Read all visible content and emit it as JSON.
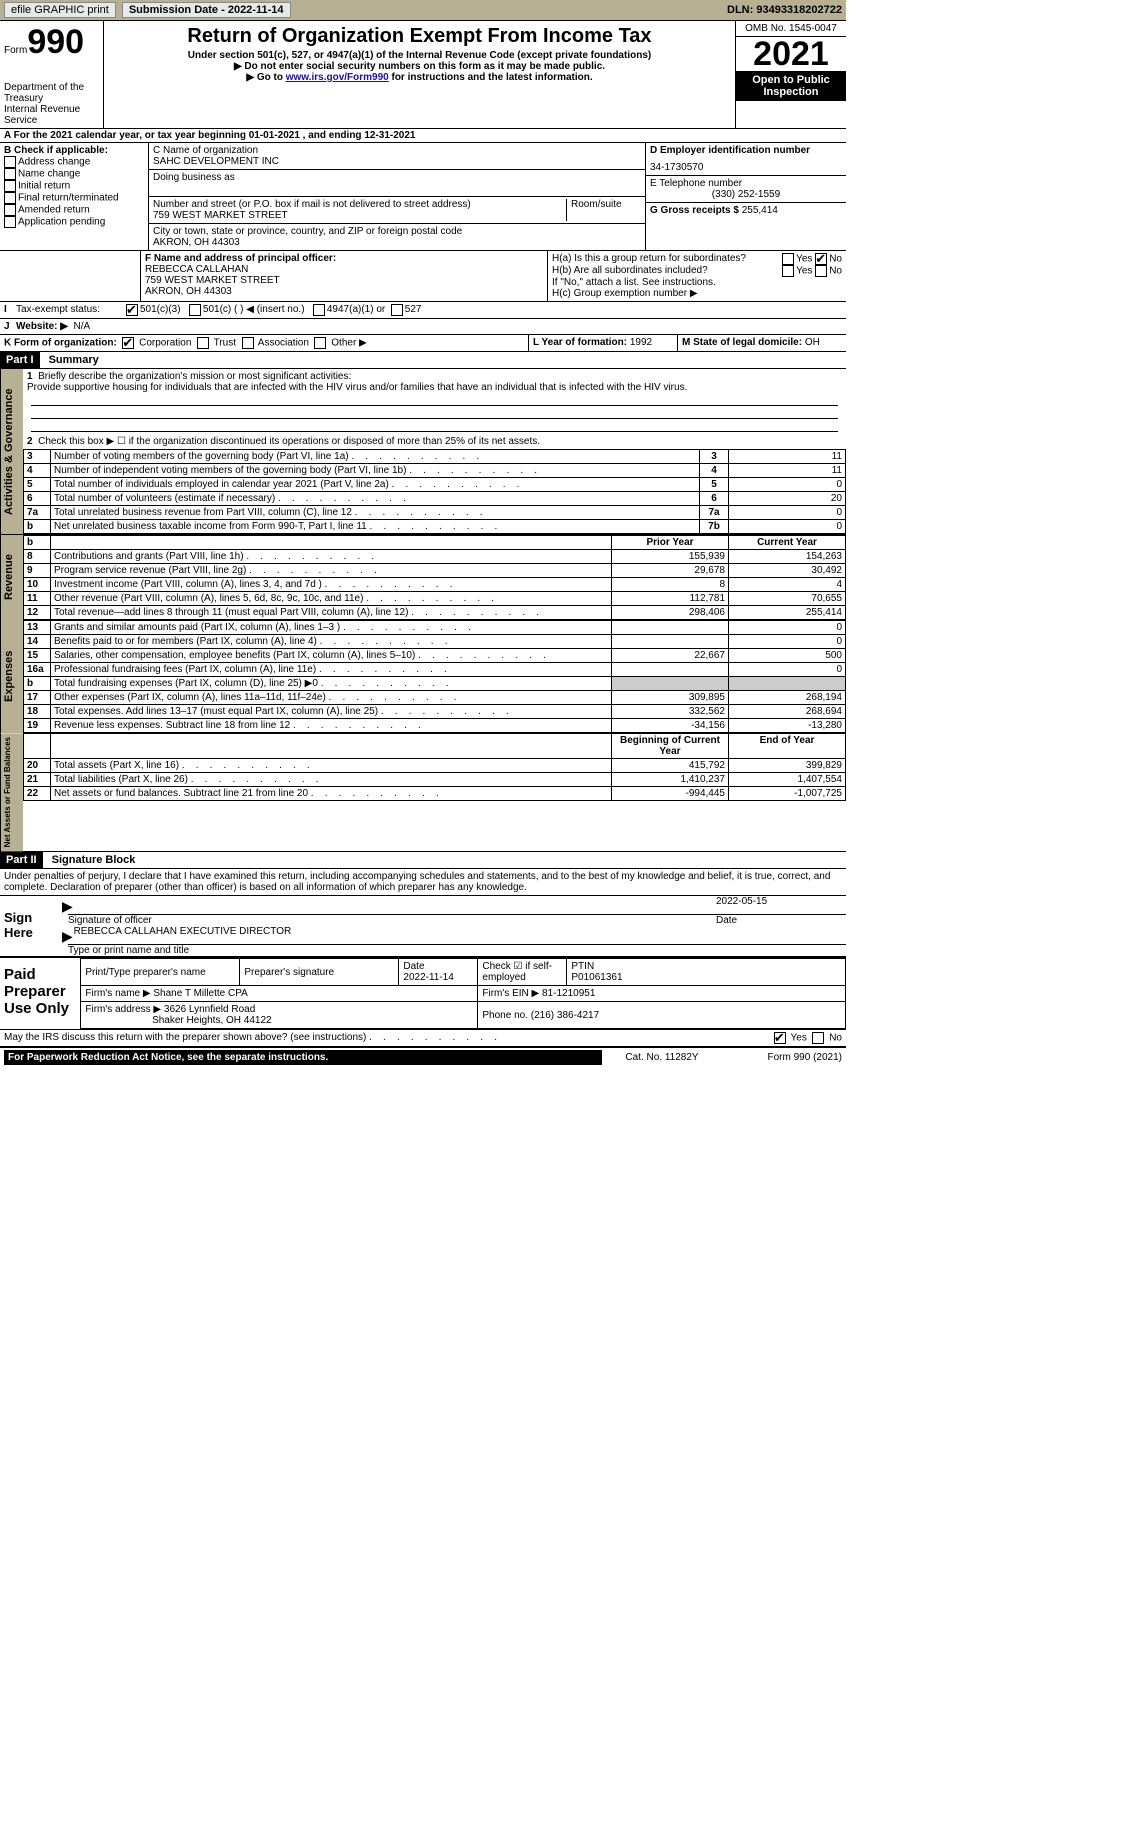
{
  "topbar": {
    "efile": "efile GRAPHIC print",
    "submission_label": "Submission Date - 2022-11-14",
    "dln": "DLN: 93493318202722"
  },
  "header": {
    "form_word": "Form",
    "form_num": "990",
    "dept": "Department of the Treasury",
    "irs": "Internal Revenue Service",
    "title": "Return of Organization Exempt From Income Tax",
    "sub1": "Under section 501(c), 527, or 4947(a)(1) of the Internal Revenue Code (except private foundations)",
    "sub2": "▶ Do not enter social security numbers on this form as it may be made public.",
    "sub3_pre": "▶ Go to ",
    "sub3_link": "www.irs.gov/Form990",
    "sub3_post": " for instructions and the latest information.",
    "omb": "OMB No. 1545-0047",
    "year": "2021",
    "open": "Open to Public Inspection"
  },
  "lineA": "A For the 2021 calendar year, or tax year beginning 01-01-2021   , and ending 12-31-2021",
  "B": {
    "label": "B Check if applicable:",
    "items": [
      "Address change",
      "Name change",
      "Initial return",
      "Final return/terminated",
      "Amended return",
      "Application pending"
    ]
  },
  "C": {
    "name_lbl": "C Name of organization",
    "name": "SAHC DEVELOPMENT INC",
    "dba_lbl": "Doing business as",
    "street_lbl": "Number and street (or P.O. box if mail is not delivered to street address)",
    "room_lbl": "Room/suite",
    "street": "759 WEST MARKET STREET",
    "city_lbl": "City or town, state or province, country, and ZIP or foreign postal code",
    "city": "AKRON, OH  44303"
  },
  "D": {
    "lbl": "D Employer identification number",
    "val": "34-1730570"
  },
  "E": {
    "lbl": "E Telephone number",
    "val": "(330) 252-1559"
  },
  "G": {
    "lbl": "G Gross receipts $",
    "val": "255,414"
  },
  "F": {
    "lbl": "F  Name and address of principal officer:",
    "name": "REBECCA CALLAHAN",
    "street": "759 WEST MARKET STREET",
    "city": "AKRON, OH  44303"
  },
  "H": {
    "a": "H(a)  Is this a group return for subordinates?",
    "b": "H(b)  Are all subordinates included?",
    "b_note": "If \"No,\" attach a list. See instructions.",
    "c": "H(c)  Group exemption number ▶",
    "yes": "Yes",
    "no": "No"
  },
  "I": {
    "lbl": "I",
    "tax": "Tax-exempt status:",
    "c3": "501(c)(3)",
    "c": "501(c) (  ) ◀ (insert no.)",
    "a1": "4947(a)(1) or",
    "527": "527"
  },
  "J": {
    "lbl": "J",
    "web": "Website: ▶",
    "val": "N/A"
  },
  "K": {
    "lbl": "K Form of organization:",
    "corp": "Corporation",
    "trust": "Trust",
    "assoc": "Association",
    "other": "Other ▶"
  },
  "L": {
    "lbl": "L Year of formation:",
    "val": "1992"
  },
  "M": {
    "lbl": "M State of legal domicile:",
    "val": "OH"
  },
  "part1": {
    "hdr": "Part I",
    "title": "Summary"
  },
  "summary": {
    "l1_lbl": "Briefly describe the organization's mission or most significant activities:",
    "l1_txt": "Provide supportive housing for individuals that are infected with the HIV virus and/or families that have an individual that is infected with the HIV virus.",
    "l2": "Check this box ▶ ☐  if the organization discontinued its operations or disposed of more than 25% of its net assets.",
    "rows": [
      {
        "n": "3",
        "lab": "Number of voting members of the governing body (Part VI, line 1a)",
        "box": "3",
        "v": "11"
      },
      {
        "n": "4",
        "lab": "Number of independent voting members of the governing body (Part VI, line 1b)",
        "box": "4",
        "v": "11"
      },
      {
        "n": "5",
        "lab": "Total number of individuals employed in calendar year 2021 (Part V, line 2a)",
        "box": "5",
        "v": "0"
      },
      {
        "n": "6",
        "lab": "Total number of volunteers (estimate if necessary)",
        "box": "6",
        "v": "20"
      },
      {
        "n": "7a",
        "lab": "Total unrelated business revenue from Part VIII, column (C), line 12",
        "box": "7a",
        "v": "0"
      },
      {
        "n": "b",
        "lab": "Net unrelated business taxable income from Form 990-T, Part I, line 11",
        "box": "7b",
        "v": "0"
      }
    ]
  },
  "rev_hdr": {
    "prior": "Prior Year",
    "cur": "Current Year"
  },
  "revenue": [
    {
      "n": "8",
      "lab": "Contributions and grants (Part VIII, line 1h)",
      "p": "155,939",
      "c": "154,263"
    },
    {
      "n": "9",
      "lab": "Program service revenue (Part VIII, line 2g)",
      "p": "29,678",
      "c": "30,492"
    },
    {
      "n": "10",
      "lab": "Investment income (Part VIII, column (A), lines 3, 4, and 7d )",
      "p": "8",
      "c": "4"
    },
    {
      "n": "11",
      "lab": "Other revenue (Part VIII, column (A), lines 5, 6d, 8c, 9c, 10c, and 11e)",
      "p": "112,781",
      "c": "70,655"
    },
    {
      "n": "12",
      "lab": "Total revenue—add lines 8 through 11 (must equal Part VIII, column (A), line 12)",
      "p": "298,406",
      "c": "255,414"
    }
  ],
  "expenses": [
    {
      "n": "13",
      "lab": "Grants and similar amounts paid (Part IX, column (A), lines 1–3 )",
      "p": "",
      "c": "0"
    },
    {
      "n": "14",
      "lab": "Benefits paid to or for members (Part IX, column (A), line 4)",
      "p": "",
      "c": "0"
    },
    {
      "n": "15",
      "lab": "Salaries, other compensation, employee benefits (Part IX, column (A), lines 5–10)",
      "p": "22,667",
      "c": "500"
    },
    {
      "n": "16a",
      "lab": "Professional fundraising fees (Part IX, column (A), line 11e)",
      "p": "",
      "c": "0"
    },
    {
      "n": "b",
      "lab": "Total fundraising expenses (Part IX, column (D), line 25) ▶0",
      "p": "GRAY",
      "c": "GRAY"
    },
    {
      "n": "17",
      "lab": "Other expenses (Part IX, column (A), lines 11a–11d, 11f–24e)",
      "p": "309,895",
      "c": "268,194"
    },
    {
      "n": "18",
      "lab": "Total expenses. Add lines 13–17 (must equal Part IX, column (A), line 25)",
      "p": "332,562",
      "c": "268,694"
    },
    {
      "n": "19",
      "lab": "Revenue less expenses. Subtract line 18 from line 12",
      "p": "-34,156",
      "c": "-13,280"
    }
  ],
  "na_hdr": {
    "beg": "Beginning of Current Year",
    "end": "End of Year"
  },
  "netassets": [
    {
      "n": "20",
      "lab": "Total assets (Part X, line 16)",
      "p": "415,792",
      "c": "399,829"
    },
    {
      "n": "21",
      "lab": "Total liabilities (Part X, line 26)",
      "p": "1,410,237",
      "c": "1,407,554"
    },
    {
      "n": "22",
      "lab": "Net assets or fund balances. Subtract line 21 from line 20",
      "p": "-994,445",
      "c": "-1,007,725"
    }
  ],
  "vtabs": {
    "ag": "Activities & Governance",
    "rev": "Revenue",
    "exp": "Expenses",
    "na": "Net Assets or Fund Balances"
  },
  "part2": {
    "hdr": "Part II",
    "title": "Signature Block"
  },
  "penalties": "Under penalties of perjury, I declare that I have examined this return, including accompanying schedules and statements, and to the best of my knowledge and belief, it is true, correct, and complete. Declaration of preparer (other than officer) is based on all information of which preparer has any knowledge.",
  "sign": {
    "here": "Sign Here",
    "sigoff": "Signature of officer",
    "date": "2022-05-15",
    "datelbl": "Date",
    "name": "REBECCA CALLAHAN  EXECUTIVE DIRECTOR",
    "typelbl": "Type or print name and title"
  },
  "paid": {
    "title": "Paid Preparer Use Only",
    "pname_lbl": "Print/Type preparer's name",
    "psig_lbl": "Preparer's signature",
    "pdate_lbl": "Date",
    "pdate": "2022-11-14",
    "chk_lbl": "Check ☑ if self-employed",
    "ptin_lbl": "PTIN",
    "ptin": "P01061361",
    "firm_lbl": "Firm's name   ▶",
    "firm": "Shane T Millette CPA",
    "ein_lbl": "Firm's EIN ▶",
    "ein": "81-1210951",
    "addr_lbl": "Firm's address ▶",
    "addr1": "3626 Lynnfield Road",
    "addr2": "Shaker Heights, OH  44122",
    "phone_lbl": "Phone no.",
    "phone": "(216) 386-4217"
  },
  "may": "May the IRS discuss this return with the preparer shown above? (see instructions)",
  "footer": {
    "left": "For Paperwork Reduction Act Notice, see the separate instructions.",
    "mid": "Cat. No. 11282Y",
    "right": "Form 990 (2021)"
  }
}
